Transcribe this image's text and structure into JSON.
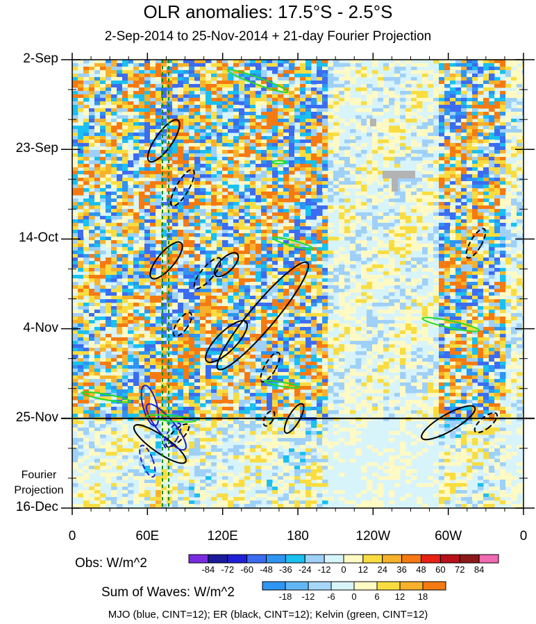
{
  "chart_data": {
    "type": "heatmap",
    "title": "OLR anomalies: 17.5°S - 2.5°S",
    "subtitle": "2-Sep-2014 to 25-Nov-2014 + 21-day Fourier Projection",
    "x_ticks": [
      "0",
      "60E",
      "120E",
      "180",
      "120W",
      "60W",
      "0"
    ],
    "x_tick_lon": [
      0,
      60,
      120,
      180,
      240,
      300,
      360
    ],
    "y_ticks": [
      "2-Sep",
      "23-Sep",
      "14-Oct",
      "4-Nov",
      "25-Nov",
      "16-Dec"
    ],
    "y_tick_day": [
      0,
      21,
      42,
      63,
      84,
      105
    ],
    "projection_start_day": 84,
    "projection_label": "Fourier Projection",
    "mjo_phase_lines_lon": [
      72,
      77
    ],
    "obs_colorbar": {
      "label": "Obs: W/m^2",
      "levels": [
        "-84",
        "-72",
        "-60",
        "-48",
        "-36",
        "-24",
        "-12",
        "0",
        "12",
        "24",
        "36",
        "48",
        "60",
        "72",
        "84"
      ],
      "colors": [
        "#7a2be0",
        "#1a1a9a",
        "#2020d8",
        "#3c6cf0",
        "#2e95f2",
        "#19c0f0",
        "#9fd0f8",
        "#d8f4fb",
        "#fff9c4",
        "#f9dd40",
        "#f7b12b",
        "#f57a12",
        "#e52214",
        "#b8111a",
        "#8c1a1a",
        "#f06ab4"
      ]
    },
    "waves_colorbar": {
      "label": "Sum of Waves: W/m^2",
      "levels": [
        "-18",
        "-12",
        "-6",
        "0",
        "6",
        "12",
        "18"
      ],
      "colors": [
        "#2e95f2",
        "#62b6f5",
        "#a6d6f8",
        "#d8f4fb",
        "#fff9c4",
        "#f9dd40",
        "#f7b12b",
        "#f57a12"
      ]
    },
    "legend_text": "MJO (blue, CINT=12); ER (black, CINT=12); Kelvin (green, CINT=12)",
    "contours": {
      "er_black_solid": [
        {
          "lon": 73,
          "day": 19
        },
        {
          "lon": 75,
          "day": 47
        },
        {
          "lon": 152,
          "day": 60
        },
        {
          "lon": 123,
          "day": 48
        },
        {
          "lon": 123,
          "day": 66
        },
        {
          "lon": 177,
          "day": 84
        },
        {
          "lon": 300,
          "day": 85
        },
        {
          "lon": 70,
          "day": 90
        }
      ],
      "er_black_dashed": [
        {
          "lon": 88,
          "day": 30
        },
        {
          "lon": 108,
          "day": 50
        },
        {
          "lon": 88,
          "day": 62
        },
        {
          "lon": 158,
          "day": 72
        },
        {
          "lon": 322,
          "day": 43
        },
        {
          "lon": 330,
          "day": 85
        },
        {
          "lon": 84,
          "day": 88
        },
        {
          "lon": 157,
          "day": 84
        }
      ],
      "mjo_blue_solid": [
        {
          "lon": 62,
          "day": 81
        },
        {
          "lon": 75,
          "day": 86
        }
      ],
      "mjo_blue_dashed": [
        {
          "lon": 60,
          "day": 94
        },
        {
          "lon": 80,
          "day": 88
        }
      ],
      "kelvin_green": [
        {
          "lon": 148,
          "day": 5
        },
        {
          "lon": 176,
          "day": 43
        },
        {
          "lon": 302,
          "day": 62
        },
        {
          "lon": 27,
          "day": 79
        },
        {
          "lon": 79,
          "day": 84
        },
        {
          "lon": 167,
          "day": 76
        },
        {
          "lon": 165,
          "day": 24
        }
      ]
    }
  }
}
